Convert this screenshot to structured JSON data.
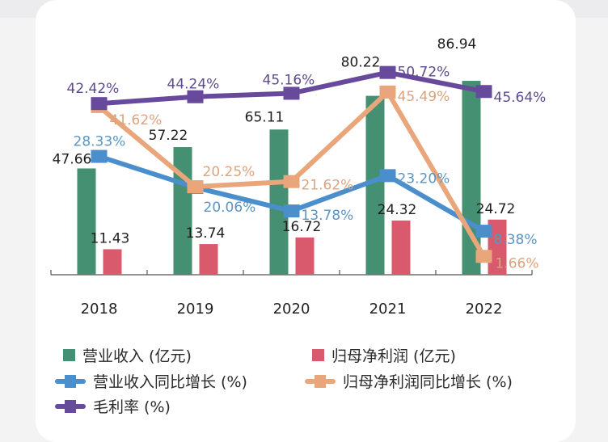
{
  "chart_data": {
    "type": "bar+line",
    "title": "",
    "categories": [
      "2018",
      "2019",
      "2020",
      "2021",
      "2022"
    ],
    "bar_series": [
      {
        "name": "营业收入 (亿元)",
        "color": "#458f72",
        "values": [
          47.66,
          57.22,
          65.11,
          80.22,
          86.94
        ],
        "labels": [
          "47.66",
          "57.22",
          "65.11",
          "80.22",
          "86.94"
        ]
      },
      {
        "name": "归母净利润 (亿元)",
        "color": "#d95a6c",
        "values": [
          11.43,
          13.74,
          16.72,
          24.32,
          24.72
        ],
        "labels": [
          "11.43",
          "13.74",
          "16.72",
          "24.32",
          "24.72"
        ]
      }
    ],
    "line_series": [
      {
        "name": "营业收入同比增长 (%)",
        "color": "#4a8fcb",
        "label_color": "#5b95c3",
        "values": [
          28.33,
          20.06,
          13.78,
          23.2,
          8.38
        ],
        "labels": [
          "28.33%",
          "20.06%",
          "13.78%",
          "23.20%",
          "8.38%"
        ]
      },
      {
        "name": "归母净利润同比增长 (%)",
        "color": "#e9a67b",
        "label_color": "#dca47e",
        "values": [
          41.62,
          20.25,
          21.62,
          45.49,
          1.66
        ],
        "labels": [
          "41.62%",
          "20.25%",
          "21.62%",
          "45.49%",
          "1.66%"
        ]
      },
      {
        "name": "毛利率 (%)",
        "color": "#684a9c",
        "label_color": "#5d4b8d",
        "values": [
          42.42,
          44.24,
          45.16,
          50.72,
          45.64
        ],
        "labels": [
          "42.42%",
          "44.24%",
          "45.16%",
          "50.72%",
          "45.64%"
        ]
      }
    ],
    "xlabel": "",
    "ylabel": "",
    "y_axis_visible": false,
    "grid": false,
    "legend_position": "bottom"
  },
  "legend": {
    "items": [
      {
        "label": "营业收入 (亿元)",
        "kind": "bar",
        "color": "#458f72"
      },
      {
        "label": "归母净利润 (亿元)",
        "kind": "bar",
        "color": "#d95a6c"
      },
      {
        "label": "营业收入同比增长 (%)",
        "kind": "line",
        "color": "#4a8fcb"
      },
      {
        "label": "归母净利润同比增长 (%)",
        "kind": "line",
        "color": "#e9a67b"
      },
      {
        "label": "毛利率 (%)",
        "kind": "line",
        "color": "#684a9c"
      }
    ]
  }
}
